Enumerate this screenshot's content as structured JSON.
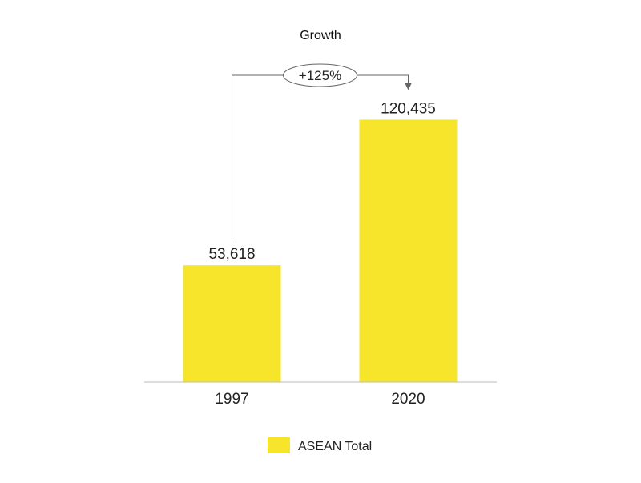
{
  "chart_data": {
    "type": "bar",
    "title": "Growth",
    "categories": [
      "1997",
      "2020"
    ],
    "series": [
      {
        "name": "ASEAN Total",
        "values": [
          53618,
          120435
        ],
        "labels": [
          "53,618",
          "120,435"
        ],
        "color": "#f7e52b"
      }
    ],
    "ylim": [
      0,
      150000
    ],
    "grid": false,
    "legend": "bottom-center",
    "annotation": {
      "text": "+125%",
      "from": "1997",
      "to": "2020"
    },
    "colors": {
      "bar": "#f7e52b",
      "axis": "#bbbbbb",
      "connector": "#666666"
    }
  }
}
